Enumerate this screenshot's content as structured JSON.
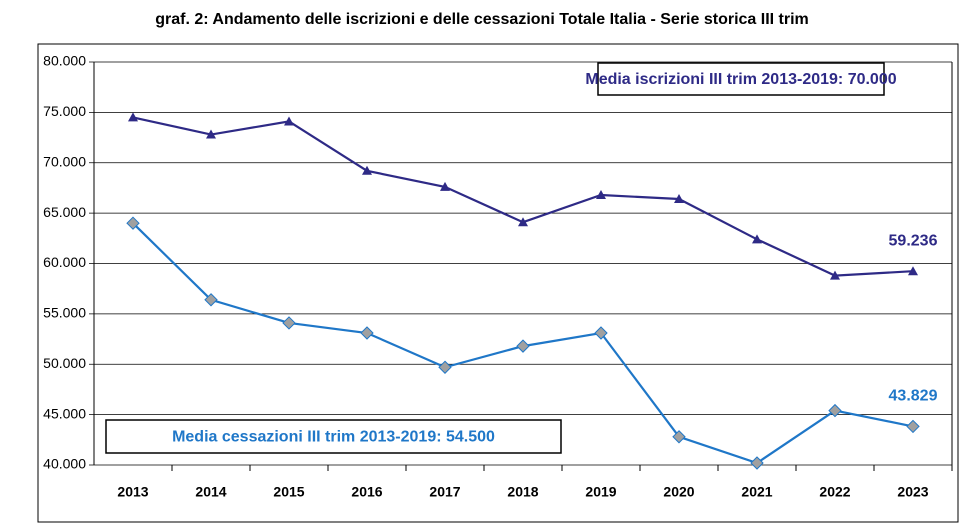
{
  "chart_data": {
    "type": "line",
    "title": "graf. 2: Andamento delle iscrizioni e delle cessazioni Totale Italia - Serie storica III trim",
    "categories": [
      "2013",
      "2014",
      "2015",
      "2016",
      "2017",
      "2018",
      "2019",
      "2020",
      "2021",
      "2022",
      "2023"
    ],
    "series": [
      {
        "name": "iscrizioni",
        "color": "#2e2a86",
        "marker": "triangle",
        "marker_color": "#2e2a86",
        "values": [
          74500,
          72800,
          74100,
          69200,
          67600,
          64100,
          66800,
          66400,
          62400,
          58800,
          59236
        ],
        "value_labels": [
          null,
          null,
          null,
          null,
          null,
          null,
          null,
          null,
          null,
          null,
          "59.236"
        ]
      },
      {
        "name": "cessazioni",
        "color": "#1f77c8",
        "marker": "diamond",
        "marker_color": "#a0a0a0",
        "values": [
          64000,
          56400,
          54100,
          53100,
          49700,
          51800,
          53100,
          42800,
          40200,
          45400,
          43829
        ],
        "value_labels": [
          null,
          null,
          null,
          null,
          null,
          null,
          null,
          null,
          null,
          null,
          "43.829"
        ]
      }
    ],
    "annotations": [
      {
        "text": "Media iscrizioni III trim 2013-2019: 70.000",
        "color": "#2e2a86"
      },
      {
        "text": "Media cessazioni III trim 2013-2019: 54.500",
        "color": "#1f77c8"
      }
    ],
    "ylim": [
      40000,
      80000
    ],
    "yticks": [
      {
        "value": 40000,
        "label": "40.000"
      },
      {
        "value": 45000,
        "label": "45.000"
      },
      {
        "value": 50000,
        "label": "50.000"
      },
      {
        "value": 55000,
        "label": "55.000"
      },
      {
        "value": 60000,
        "label": "60.000"
      },
      {
        "value": 65000,
        "label": "65.000"
      },
      {
        "value": 70000,
        "label": "70.000"
      },
      {
        "value": 75000,
        "label": "75.000"
      },
      {
        "value": 80000,
        "label": "80.000"
      }
    ],
    "grid": true
  }
}
